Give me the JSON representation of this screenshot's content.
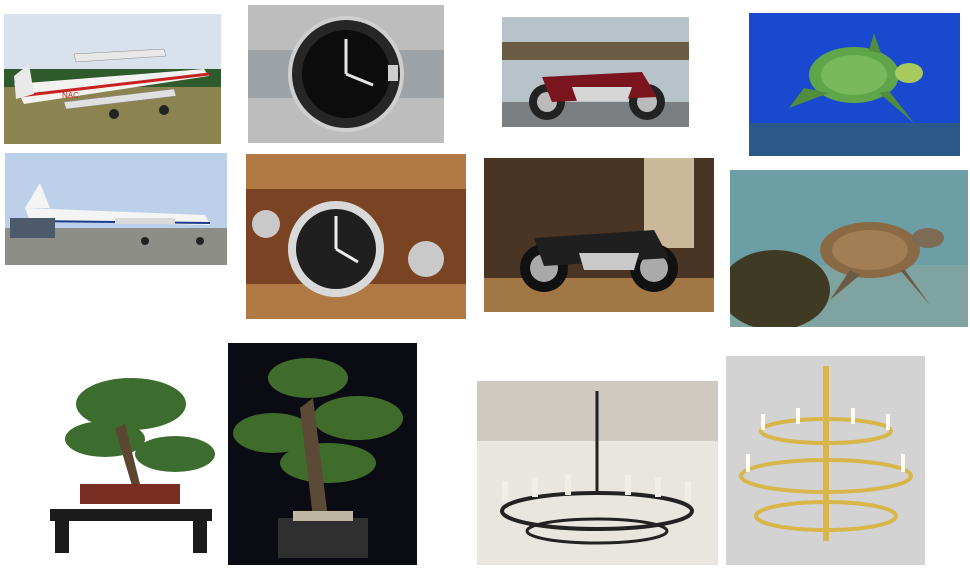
{
  "collage": {
    "description_labels": [],
    "tiles": [
      {
        "subject": "biplane-airliner",
        "livery_text": "NAC"
      },
      {
        "subject": "dive-wristwatch"
      },
      {
        "subject": "cruiser-motorcycle-pier"
      },
      {
        "subject": "sea-turtle-swimming"
      },
      {
        "subject": "turboprop-airplane"
      },
      {
        "subject": "wristwatch-leather-cuff"
      },
      {
        "subject": "motorcycle-in-garage"
      },
      {
        "subject": "sea-turtle-over-coral"
      },
      {
        "subject": "bonsai-on-stand"
      },
      {
        "subject": "bonsai-dark-background"
      },
      {
        "subject": "wrought-iron-chandelier"
      },
      {
        "subject": "brass-chandelier"
      }
    ]
  },
  "colors": {
    "sky": "#c9d6e6",
    "grass": "#8a8a4a",
    "ocean": "#1b4fd0",
    "seabed": "#5f8c9a",
    "wood": "#a27647",
    "foliage": "#3f6b2b",
    "brass": "#d9b64a"
  }
}
